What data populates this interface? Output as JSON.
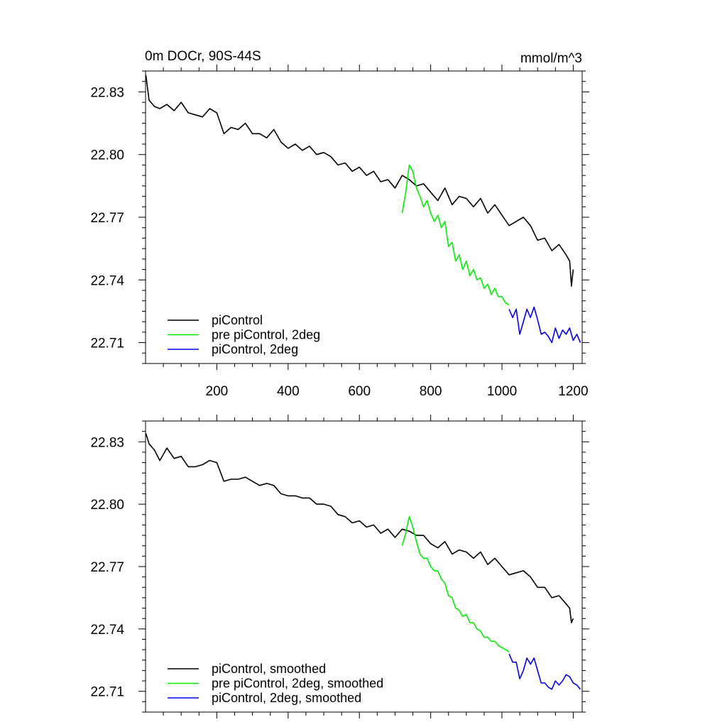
{
  "top_left_title": "0m DOCr, 90S-44S",
  "top_right_title": "mmol/m^3",
  "chart_data": [
    {
      "type": "line",
      "xlim": [
        0,
        1225
      ],
      "ylim": [
        22.7,
        22.84
      ],
      "xticks": [
        200,
        400,
        600,
        800,
        1000,
        1200
      ],
      "xtick_labels": [
        "200",
        "400",
        "600",
        "800",
        "1000",
        "1200"
      ],
      "yticks": [
        22.71,
        22.74,
        22.77,
        22.8,
        22.83
      ],
      "ytick_labels": [
        "22.71",
        "22.74",
        "22.77",
        "22.80",
        "22.83"
      ],
      "legend_position": "bottom-left",
      "series": [
        {
          "name": "piControl",
          "color": "#000000",
          "x": [
            1,
            10,
            25,
            40,
            60,
            80,
            100,
            120,
            140,
            160,
            180,
            200,
            220,
            240,
            260,
            280,
            300,
            320,
            340,
            360,
            380,
            400,
            420,
            440,
            460,
            480,
            500,
            520,
            540,
            560,
            580,
            600,
            620,
            640,
            660,
            680,
            700,
            720,
            740,
            760,
            780,
            800,
            820,
            840,
            860,
            880,
            900,
            920,
            940,
            960,
            980,
            1000,
            1020,
            1040,
            1060,
            1080,
            1100,
            1120,
            1140,
            1160,
            1180,
            1190,
            1195,
            1200
          ],
          "y": [
            22.838,
            22.826,
            22.823,
            22.822,
            22.824,
            22.821,
            22.825,
            22.82,
            22.819,
            22.818,
            22.822,
            22.82,
            22.81,
            22.813,
            22.812,
            22.815,
            22.81,
            22.81,
            22.808,
            22.812,
            22.806,
            22.803,
            22.805,
            22.802,
            22.804,
            22.8,
            22.801,
            22.799,
            22.795,
            22.796,
            22.792,
            22.794,
            22.79,
            22.792,
            22.787,
            22.788,
            22.784,
            22.79,
            22.788,
            22.785,
            22.786,
            22.782,
            22.778,
            22.784,
            22.776,
            22.78,
            22.779,
            22.775,
            22.779,
            22.772,
            22.776,
            22.771,
            22.766,
            22.768,
            22.77,
            22.766,
            22.759,
            22.76,
            22.754,
            22.757,
            22.752,
            22.749,
            22.737,
            22.745
          ]
        },
        {
          "name": "pre piControl, 2deg",
          "color": "#00ee00",
          "x": [
            720,
            730,
            740,
            750,
            760,
            770,
            780,
            790,
            800,
            810,
            820,
            830,
            840,
            850,
            860,
            870,
            880,
            890,
            900,
            910,
            920,
            930,
            940,
            950,
            960,
            970,
            980,
            990,
            1000,
            1010,
            1020
          ],
          "y": [
            22.772,
            22.782,
            22.795,
            22.792,
            22.784,
            22.78,
            22.775,
            22.778,
            22.772,
            22.768,
            22.771,
            22.765,
            22.768,
            22.756,
            22.758,
            22.749,
            22.752,
            22.745,
            22.749,
            22.742,
            22.745,
            22.74,
            22.741,
            22.736,
            22.738,
            22.733,
            22.736,
            22.732,
            22.732,
            22.729,
            22.728
          ]
        },
        {
          "name": "piControl, 2deg",
          "color": "#0000ee",
          "x": [
            1020,
            1030,
            1040,
            1050,
            1060,
            1070,
            1080,
            1090,
            1100,
            1110,
            1120,
            1130,
            1140,
            1150,
            1160,
            1170,
            1180,
            1190,
            1200,
            1210,
            1220
          ],
          "y": [
            22.726,
            22.722,
            22.726,
            22.714,
            22.72,
            22.726,
            22.722,
            22.727,
            22.721,
            22.714,
            22.715,
            22.713,
            22.71,
            22.717,
            22.712,
            22.716,
            22.714,
            22.717,
            22.711,
            22.714,
            22.71
          ]
        }
      ]
    },
    {
      "type": "line",
      "xlim": [
        0,
        1225
      ],
      "ylim": [
        22.7,
        22.84
      ],
      "xticks": [
        200,
        400,
        600,
        800,
        1000,
        1200
      ],
      "yticks": [
        22.71,
        22.74,
        22.77,
        22.8,
        22.83
      ],
      "ytick_labels": [
        "22.71",
        "22.74",
        "22.77",
        "22.80",
        "22.83"
      ],
      "legend_position": "bottom-left",
      "series": [
        {
          "name": "piControl, smoothed",
          "color": "#000000",
          "x": [
            1,
            10,
            25,
            40,
            60,
            80,
            100,
            120,
            140,
            160,
            180,
            200,
            220,
            240,
            260,
            280,
            300,
            320,
            340,
            360,
            380,
            400,
            420,
            440,
            460,
            480,
            500,
            520,
            540,
            560,
            580,
            600,
            620,
            640,
            660,
            680,
            700,
            720,
            740,
            760,
            780,
            800,
            820,
            840,
            860,
            880,
            900,
            920,
            940,
            960,
            980,
            1000,
            1020,
            1040,
            1060,
            1080,
            1100,
            1120,
            1140,
            1160,
            1180,
            1190,
            1195,
            1200
          ],
          "y": [
            22.834,
            22.829,
            22.826,
            22.821,
            22.827,
            22.822,
            22.823,
            22.818,
            22.818,
            22.819,
            22.821,
            22.82,
            22.811,
            22.812,
            22.812,
            22.813,
            22.811,
            22.809,
            22.81,
            22.809,
            22.805,
            22.804,
            22.804,
            22.803,
            22.803,
            22.8,
            22.8,
            22.799,
            22.795,
            22.794,
            22.791,
            22.792,
            22.789,
            22.79,
            22.786,
            22.788,
            22.784,
            22.788,
            22.787,
            22.785,
            22.785,
            22.781,
            22.779,
            22.782,
            22.776,
            22.778,
            22.777,
            22.774,
            22.777,
            22.771,
            22.774,
            22.77,
            22.766,
            22.767,
            22.768,
            22.765,
            22.76,
            22.76,
            22.755,
            22.756,
            22.752,
            22.75,
            22.743,
            22.745
          ]
        },
        {
          "name": "pre piControl, 2deg, smoothed",
          "color": "#00ee00",
          "x": [
            720,
            730,
            740,
            750,
            760,
            770,
            780,
            790,
            800,
            810,
            820,
            830,
            840,
            850,
            860,
            870,
            880,
            890,
            900,
            910,
            920,
            930,
            940,
            950,
            960,
            970,
            980,
            990,
            1000,
            1010,
            1020
          ],
          "y": [
            22.78,
            22.786,
            22.794,
            22.789,
            22.782,
            22.776,
            22.774,
            22.774,
            22.77,
            22.768,
            22.768,
            22.764,
            22.762,
            22.756,
            22.755,
            22.75,
            22.749,
            22.746,
            22.747,
            22.743,
            22.743,
            22.74,
            22.739,
            22.736,
            22.736,
            22.734,
            22.734,
            22.732,
            22.731,
            22.73,
            22.729
          ]
        },
        {
          "name": "piControl, 2deg, smoothed",
          "color": "#0000ee",
          "x": [
            1020,
            1030,
            1040,
            1050,
            1060,
            1070,
            1080,
            1090,
            1100,
            1110,
            1120,
            1130,
            1140,
            1150,
            1160,
            1170,
            1180,
            1190,
            1200,
            1210,
            1220
          ],
          "y": [
            22.728,
            22.724,
            22.724,
            22.716,
            22.72,
            22.726,
            22.723,
            22.726,
            22.72,
            22.714,
            22.714,
            22.712,
            22.711,
            22.715,
            22.713,
            22.715,
            22.718,
            22.717,
            22.714,
            22.713,
            22.711
          ]
        }
      ]
    }
  ]
}
